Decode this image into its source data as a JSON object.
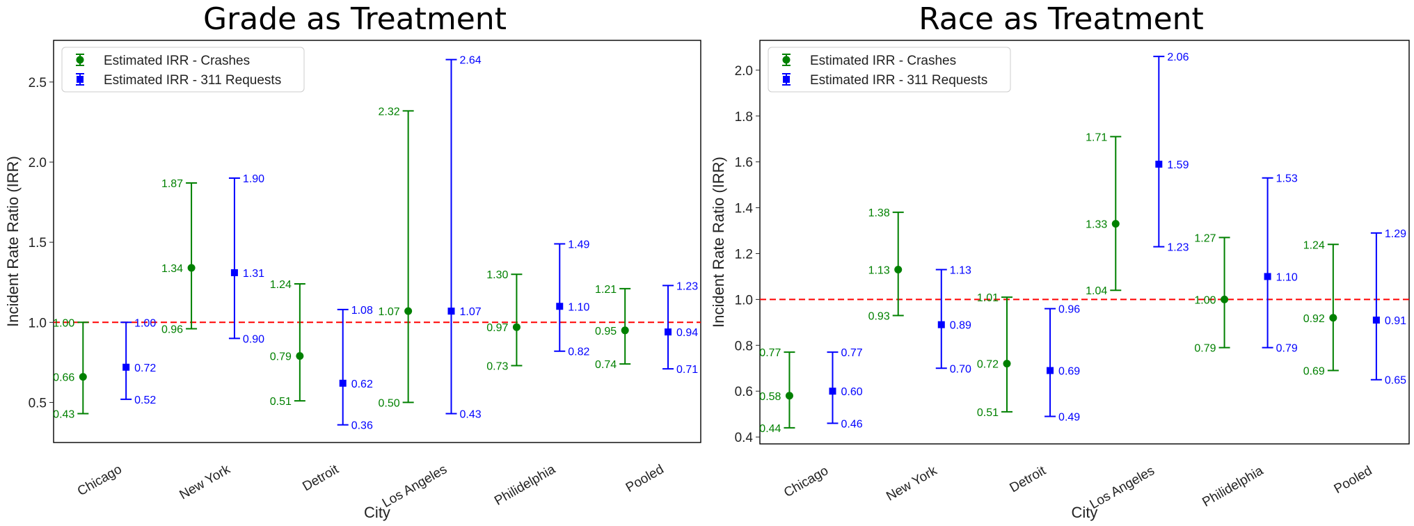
{
  "colors": {
    "crashes": "#008000",
    "requests": "#0000ff",
    "reference": "#ff0000"
  },
  "legend": {
    "crashes": "Estimated IRR - Crashes",
    "requests": "Estimated IRR - 311 Requests"
  },
  "chart_data": [
    {
      "type": "errorbar",
      "title": "Grade as Treatment",
      "xlabel": "City",
      "ylabel": "Incident Rate Ratio (IRR)",
      "categories": [
        "Chicago",
        "New York",
        "Detroit",
        "Los Angeles",
        "Philidelphia",
        "Pooled"
      ],
      "ylim": [
        0.25,
        2.76
      ],
      "yticks": [
        0.5,
        1.0,
        1.5,
        2.0,
        2.5
      ],
      "ytick_labels": [
        "0.5",
        "1.0",
        "1.5",
        "2.0",
        "2.5"
      ],
      "reference_line": 1.0,
      "legend_position": "upper-left",
      "series": [
        {
          "name": "Estimated IRR - Crashes",
          "marker": "circle",
          "estimate": [
            0.66,
            1.34,
            0.79,
            1.07,
            0.97,
            0.95
          ],
          "lower": [
            0.43,
            0.96,
            0.51,
            0.5,
            0.73,
            0.74
          ],
          "upper": [
            1.0,
            1.87,
            1.24,
            2.32,
            1.3,
            1.21
          ],
          "estimate_labels": [
            "0.66",
            "1.34",
            "0.79",
            "1.07",
            "0.97",
            "0.95"
          ],
          "lower_labels": [
            "0.43",
            "0.96",
            "0.51",
            "0.50",
            "0.73",
            "0.74"
          ],
          "upper_labels": [
            "1.00",
            "1.87",
            "1.24",
            "2.32",
            "1.30",
            "1.21"
          ]
        },
        {
          "name": "Estimated IRR - 311 Requests",
          "marker": "square",
          "estimate": [
            0.72,
            1.31,
            0.62,
            1.07,
            1.1,
            0.94
          ],
          "lower": [
            0.52,
            0.9,
            0.36,
            0.43,
            0.82,
            0.71
          ],
          "upper": [
            1.0,
            1.9,
            1.08,
            2.64,
            1.49,
            1.23
          ],
          "estimate_labels": [
            "0.72",
            "1.31",
            "0.62",
            "1.07",
            "1.10",
            "0.94"
          ],
          "lower_labels": [
            "0.52",
            "0.90",
            "0.36",
            "0.43",
            "0.82",
            "0.71"
          ],
          "upper_labels": [
            "1.00",
            "1.90",
            "1.08",
            "2.64",
            "1.49",
            "1.23"
          ]
        }
      ]
    },
    {
      "type": "errorbar",
      "title": "Race as Treatment",
      "xlabel": "City",
      "ylabel": "Incident Rate Ratio (IRR)",
      "categories": [
        "Chicago",
        "New York",
        "Detroit",
        "Los Angeles",
        "Philidelphia",
        "Pooled"
      ],
      "ylim": [
        0.37,
        2.13
      ],
      "yticks": [
        0.4,
        0.6,
        0.8,
        1.0,
        1.2,
        1.4,
        1.6,
        1.8,
        2.0
      ],
      "ytick_labels": [
        "0.4",
        "0.6",
        "0.8",
        "1.0",
        "1.2",
        "1.4",
        "1.6",
        "1.8",
        "2.0"
      ],
      "reference_line": 1.0,
      "legend_position": "upper-left",
      "series": [
        {
          "name": "Estimated IRR - Crashes",
          "marker": "circle",
          "estimate": [
            0.58,
            1.13,
            0.72,
            1.33,
            1.0,
            0.92
          ],
          "lower": [
            0.44,
            0.93,
            0.51,
            1.04,
            0.79,
            0.69
          ],
          "upper": [
            0.77,
            1.38,
            1.01,
            1.71,
            1.27,
            1.24
          ],
          "estimate_labels": [
            "0.58",
            "1.13",
            "0.72",
            "1.33",
            "1.00",
            "0.92"
          ],
          "lower_labels": [
            "0.44",
            "0.93",
            "0.51",
            "1.04",
            "0.79",
            "0.69"
          ],
          "upper_labels": [
            "0.77",
            "1.38",
            "1.01",
            "1.71",
            "1.27",
            "1.24"
          ]
        },
        {
          "name": "Estimated IRR - 311 Requests",
          "marker": "square",
          "estimate": [
            0.6,
            0.89,
            0.69,
            1.59,
            1.1,
            0.91
          ],
          "lower": [
            0.46,
            0.7,
            0.49,
            1.23,
            0.79,
            0.65
          ],
          "upper": [
            0.77,
            1.13,
            0.96,
            2.06,
            1.53,
            1.29
          ],
          "estimate_labels": [
            "0.60",
            "0.89",
            "0.69",
            "1.59",
            "1.10",
            "0.91"
          ],
          "lower_labels": [
            "0.46",
            "0.70",
            "0.49",
            "1.23",
            "0.79",
            "0.65"
          ],
          "upper_labels": [
            "0.77",
            "1.13",
            "0.96",
            "2.06",
            "1.53",
            "1.29"
          ]
        }
      ]
    }
  ]
}
